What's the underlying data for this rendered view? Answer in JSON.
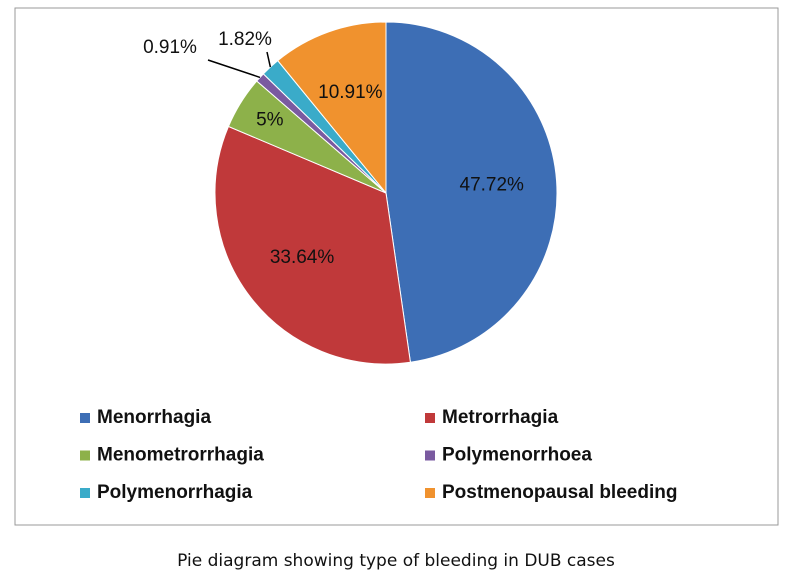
{
  "chart_data": {
    "type": "pie",
    "categories": [
      "Menorrhagia",
      "Metrorrhagia",
      "Menometrorrhagia",
      "Polymenorrhoea",
      "Polymenorrhagia",
      "Postmenopausal bleeding"
    ],
    "values": [
      47.72,
      33.64,
      5,
      0.91,
      1.82,
      10.91
    ],
    "value_labels": [
      "47.72%",
      "33.64%",
      "5%",
      "0.91%",
      "1.82%",
      "10.91%"
    ],
    "colors": [
      "#3d6eb5",
      "#c0393a",
      "#8db14a",
      "#7a5aa0",
      "#3aabc9",
      "#f0922e"
    ],
    "legend": "bottom"
  },
  "caption": "Pie diagram showing type of bleeding in DUB cases"
}
